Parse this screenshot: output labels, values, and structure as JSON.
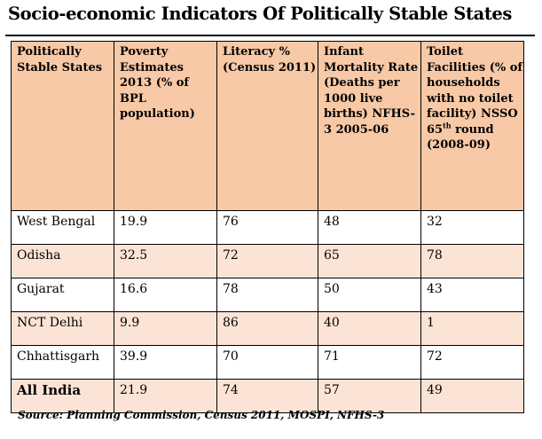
{
  "title": "Socio-economic Indicators Of Politically Stable States",
  "table": {
    "headers": [
      "Politically Stable States",
      "Poverty Estimates 2013 (% of BPL population)",
      "Literacy % (Census 2011)",
      "Infant Mortality Rate (Deaths per 1000 live births) NFHS-3 2005-06",
      "Toilet Facilities (% of households with no toilet facility) NSSO 65th round (2008-09)"
    ],
    "header_last": {
      "before_sup": "Toilet Facilities (% of households with no toilet facility) NSSO 65",
      "sup": "th",
      "after_sup": " round (2008-09)"
    },
    "rows": [
      [
        "West Bengal",
        "19.9",
        "76",
        "48",
        "32"
      ],
      [
        "Odisha",
        "32.5",
        "72",
        "65",
        "78"
      ],
      [
        "Gujarat",
        "16.6",
        "78",
        "50",
        "43"
      ],
      [
        "NCT Delhi",
        "9.9",
        "86",
        "40",
        "1"
      ],
      [
        "Chhattisgarh",
        "39.9",
        "70",
        "71",
        "72"
      ],
      [
        "All India",
        "21.9",
        "74",
        "57",
        "49"
      ]
    ]
  },
  "source": "Source: Planning Commission, Census 2011, MOSPI, NFHS-3",
  "colors": {
    "header_bg": "#f8c9a6",
    "alt_row_bg": "#fbe4d5",
    "row_bg": "#ffffff",
    "border": "#000000"
  }
}
